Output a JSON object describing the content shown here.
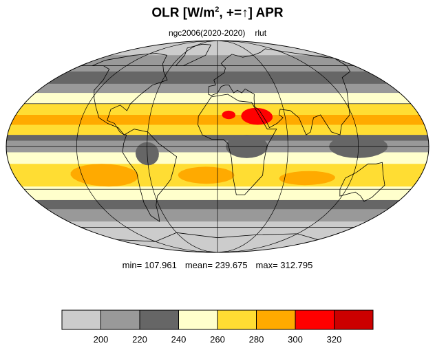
{
  "title": {
    "main": "OLR [W/m",
    "sup": "2",
    "rest": ", +=",
    "arrow": "↑",
    "end": "] APR"
  },
  "subtitle": {
    "case": "ngc2006(2020-2020)",
    "variable": "rlut"
  },
  "stats": {
    "min": "min= 107.961",
    "mean": "mean= 239.675",
    "max": "max= 312.795"
  },
  "map": {
    "projection": "Mollweide",
    "bands": [
      {
        "lat_top": 90,
        "lat_bottom": 70,
        "value_class": 0
      },
      {
        "lat_top": 70,
        "lat_bottom": 55,
        "value_class": 1
      },
      {
        "lat_top": 55,
        "lat_bottom": 45,
        "value_class": 2
      },
      {
        "lat_top": 45,
        "lat_bottom": 38,
        "value_class": 1
      },
      {
        "lat_top": 38,
        "lat_bottom": 30,
        "value_class": 3
      },
      {
        "lat_top": 30,
        "lat_bottom": 22,
        "value_class": 4
      },
      {
        "lat_top": 22,
        "lat_bottom": 15,
        "value_class": 5
      },
      {
        "lat_top": 15,
        "lat_bottom": 8,
        "value_class": 4
      },
      {
        "lat_top": 8,
        "lat_bottom": 4,
        "value_class": 2
      },
      {
        "lat_top": 4,
        "lat_bottom": -4,
        "value_class": 1
      },
      {
        "lat_top": -4,
        "lat_bottom": -12,
        "value_class": 3
      },
      {
        "lat_top": -12,
        "lat_bottom": -28,
        "value_class": 4
      },
      {
        "lat_top": -28,
        "lat_bottom": -38,
        "value_class": 3
      },
      {
        "lat_top": -38,
        "lat_bottom": -45,
        "value_class": 2
      },
      {
        "lat_top": -45,
        "lat_bottom": -55,
        "value_class": 1
      },
      {
        "lat_top": -55,
        "lat_bottom": -90,
        "value_class": 0
      }
    ],
    "hotspots": [
      {
        "lon": 35,
        "lat": 21,
        "rlon": 14,
        "rlat": 6,
        "value_class": 6
      },
      {
        "lon": 10,
        "lat": 22,
        "rlon": 6,
        "rlat": 3,
        "value_class": 6
      },
      {
        "lon": -100,
        "lat": -20,
        "rlon": 30,
        "rlat": 8,
        "value_class": 5
      },
      {
        "lon": -10,
        "lat": -20,
        "rlon": 25,
        "rlat": 6,
        "value_class": 5
      },
      {
        "lon": 80,
        "lat": -22,
        "rlon": 25,
        "rlat": 5,
        "value_class": 5
      },
      {
        "lon": 25,
        "lat": 0,
        "rlon": 18,
        "rlat": 8,
        "value_class": 2
      },
      {
        "lon": 120,
        "lat": 0,
        "rlon": 25,
        "rlat": 8,
        "value_class": 2
      },
      {
        "lon": -60,
        "lat": -5,
        "rlon": 10,
        "rlat": 8,
        "value_class": 2
      }
    ]
  },
  "colorbar": {
    "colors": [
      "#cccccc",
      "#999999",
      "#666666",
      "#ffffcc",
      "#ffdd33",
      "#ffaa00",
      "#ff0000",
      "#cc0000"
    ],
    "labels": [
      "200",
      "220",
      "240",
      "260",
      "280",
      "300",
      "320"
    ]
  }
}
